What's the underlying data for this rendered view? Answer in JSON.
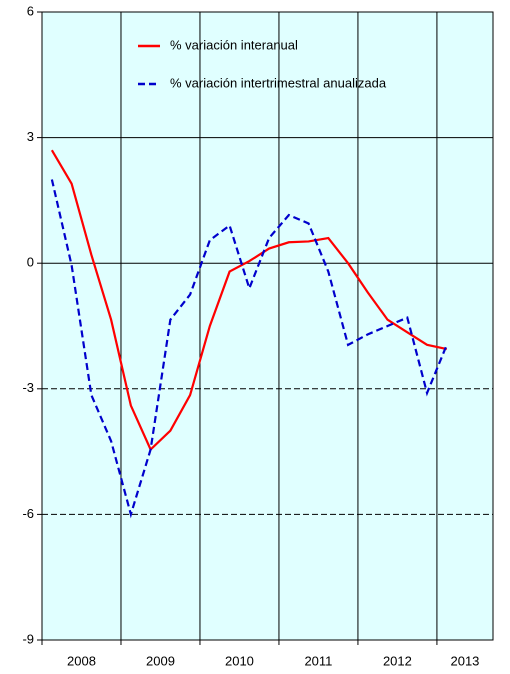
{
  "chart_data": {
    "type": "line",
    "categories": [
      "2008",
      "2009",
      "2010",
      "2011",
      "2012",
      "2013"
    ],
    "x": [
      2008.125,
      2008.375,
      2008.625,
      2008.875,
      2009.125,
      2009.375,
      2009.625,
      2009.875,
      2010.125,
      2010.375,
      2010.625,
      2010.875,
      2011.125,
      2011.375,
      2011.625,
      2011.875,
      2012.125,
      2012.375,
      2012.625,
      2012.875,
      2013.125
    ],
    "xlim": [
      2008,
      2013.71
    ],
    "ylim": [
      -9,
      6
    ],
    "yticks": [
      -9,
      -6,
      -3,
      0,
      3,
      6
    ],
    "grid": true,
    "legend": "top",
    "series": [
      {
        "name": "% variación interanual",
        "color": "#ff0000",
        "dash": false,
        "values": [
          2.7,
          1.9,
          0.2,
          -1.35,
          -3.4,
          -4.45,
          -4.0,
          -3.15,
          -1.5,
          -0.2,
          0.05,
          0.35,
          0.5,
          0.52,
          0.6,
          0.0,
          -0.7,
          -1.35,
          -1.65,
          -1.95,
          -2.05
        ]
      },
      {
        "name": "% variación intertrimestral anualizada",
        "color": "#0000cc",
        "dash": true,
        "values": [
          2.0,
          -0.05,
          -3.15,
          -4.25,
          -6.0,
          -4.45,
          -1.35,
          -0.75,
          0.55,
          0.9,
          -0.6,
          0.6,
          1.15,
          0.95,
          -0.2,
          -1.95,
          -1.7,
          -1.5,
          -1.3,
          -3.1,
          -1.95
        ]
      }
    ]
  }
}
